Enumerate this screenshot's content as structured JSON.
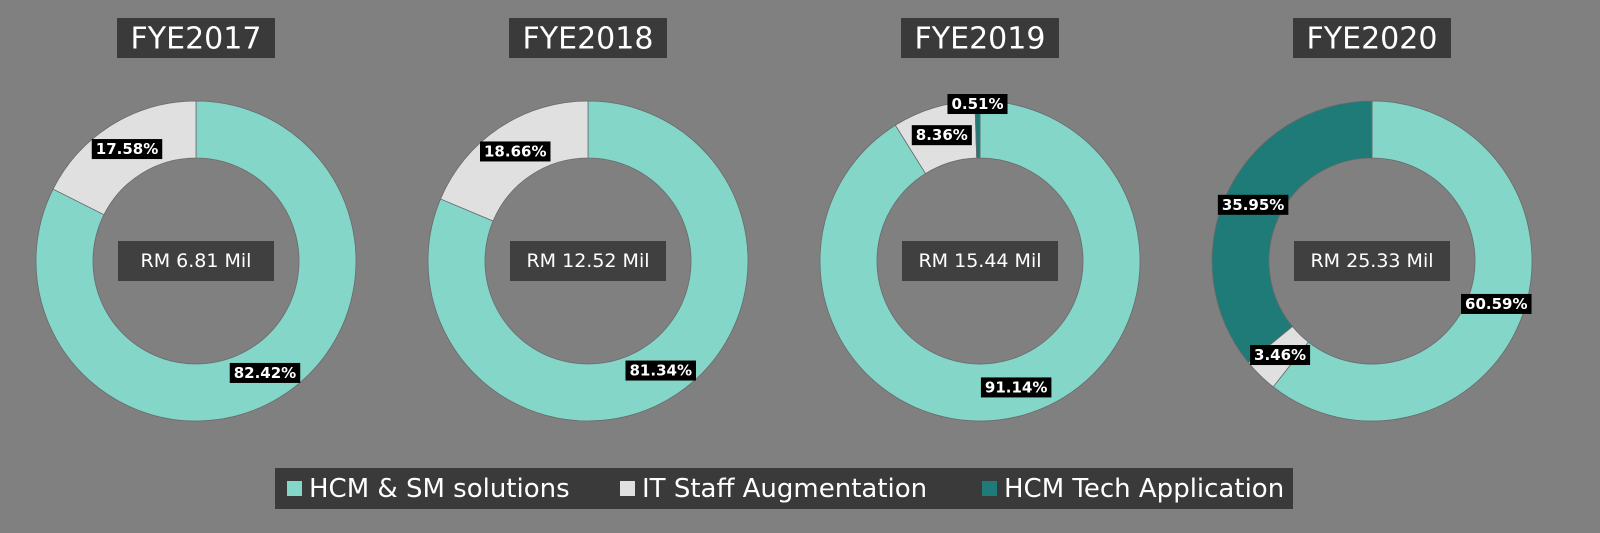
{
  "chart_data": [
    {
      "type": "donut",
      "title": "FYE2017",
      "center_label": "RM 6.81 Mil",
      "values": [
        82.42,
        17.58,
        null
      ],
      "value_labels": [
        "82.42%",
        "17.58%",
        null
      ]
    },
    {
      "type": "donut",
      "title": "FYE2018",
      "center_label": "RM 12.52 Mil",
      "values": [
        81.34,
        18.66,
        null
      ],
      "value_labels": [
        "81.34%",
        "18.66%",
        null
      ]
    },
    {
      "type": "donut",
      "title": "FYE2019",
      "center_label": "RM 15.44 Mil",
      "values": [
        91.14,
        8.36,
        0.51
      ],
      "value_labels": [
        "91.14%",
        "8.36%",
        "0.51%"
      ]
    },
    {
      "type": "donut",
      "title": "FYE2020",
      "center_label": "RM 25.33 Mil",
      "values": [
        60.59,
        3.46,
        35.95
      ],
      "value_labels": [
        "60.59%",
        "3.46%",
        "35.95%"
      ]
    }
  ],
  "legend": {
    "categories": [
      "HCM & SM solutions",
      "IT Staff Augmentation",
      "HCM Tech Application"
    ],
    "colors": [
      "#84d6c9",
      "#e0e0e0",
      "#1f7b78"
    ]
  }
}
